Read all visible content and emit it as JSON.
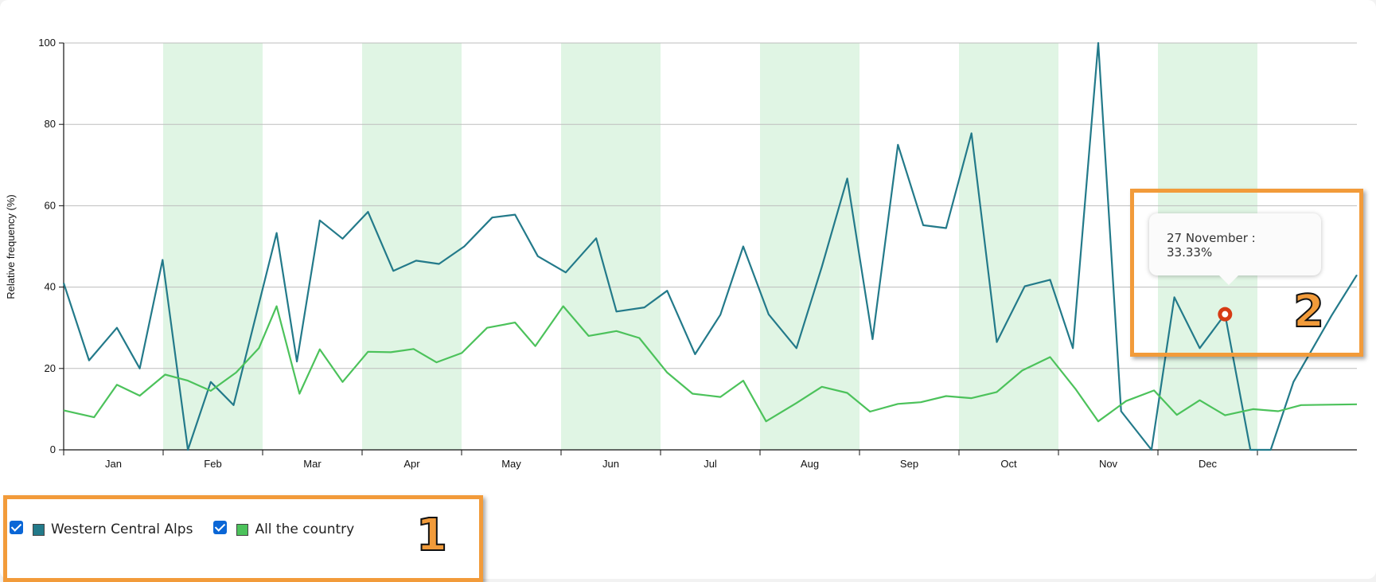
{
  "chart_data": {
    "type": "line",
    "ylabel": "Relative frequency (%)",
    "xlabel": "",
    "ylim": [
      0,
      100
    ],
    "yticks": [
      0,
      20,
      40,
      60,
      80,
      100
    ],
    "months": [
      "Jan",
      "Feb",
      "Mar",
      "Apr",
      "May",
      "Jun",
      "Jul",
      "Aug",
      "Sep",
      "Oct",
      "Nov",
      "Dec"
    ],
    "shaded_months": [
      "Feb",
      "Apr",
      "Jun",
      "Aug",
      "Oct",
      "Dec"
    ],
    "grid": true,
    "series": [
      {
        "name": "Western Central Alps",
        "color": "#237a8a",
        "points": [
          [
            0.0,
            41
          ],
          [
            0.5,
            22
          ],
          [
            1.05,
            30
          ],
          [
            1.5,
            20
          ],
          [
            1.95,
            46.7
          ],
          [
            2.45,
            0
          ],
          [
            2.9,
            16.7
          ],
          [
            3.35,
            11
          ],
          [
            4.2,
            53.3
          ],
          [
            4.6,
            21.7
          ],
          [
            5.05,
            56.4
          ],
          [
            5.5,
            51.9
          ],
          [
            6.0,
            58.5
          ],
          [
            6.5,
            44
          ],
          [
            6.95,
            46.5
          ],
          [
            7.4,
            45.7
          ],
          [
            7.9,
            50
          ],
          [
            8.45,
            57.1
          ],
          [
            8.9,
            57.8
          ],
          [
            9.35,
            47.6
          ],
          [
            9.9,
            43.6
          ],
          [
            10.5,
            52
          ],
          [
            10.9,
            34
          ],
          [
            11.45,
            35
          ],
          [
            11.9,
            39.1
          ],
          [
            12.45,
            23.5
          ],
          [
            12.95,
            33.2
          ],
          [
            13.4,
            50
          ],
          [
            13.9,
            33.3
          ],
          [
            14.45,
            25
          ],
          [
            14.95,
            45
          ],
          [
            15.45,
            66.7
          ],
          [
            15.95,
            27.2
          ],
          [
            16.45,
            75
          ],
          [
            16.95,
            55.2
          ],
          [
            17.4,
            54.5
          ],
          [
            17.9,
            77.8
          ],
          [
            18.4,
            26.5
          ],
          [
            18.95,
            40.2
          ],
          [
            19.45,
            41.8
          ],
          [
            19.9,
            25
          ],
          [
            20.4,
            100
          ],
          [
            20.85,
            9.5
          ],
          [
            21.45,
            0
          ],
          [
            21.9,
            37.5
          ],
          [
            22.4,
            25
          ],
          [
            22.9,
            33.33
          ],
          [
            23.4,
            0
          ],
          [
            23.8,
            0
          ],
          [
            24.25,
            16.7
          ],
          [
            25.0,
            33
          ],
          [
            25.5,
            43
          ]
        ]
      },
      {
        "name": "All the country",
        "color": "#4cc25b",
        "points": [
          [
            0.0,
            9.7
          ],
          [
            0.6,
            8
          ],
          [
            1.05,
            16
          ],
          [
            1.5,
            13.3
          ],
          [
            2.0,
            18.5
          ],
          [
            2.45,
            17
          ],
          [
            2.9,
            14.5
          ],
          [
            3.4,
            19
          ],
          [
            3.85,
            25
          ],
          [
            4.2,
            35.3
          ],
          [
            4.65,
            13.8
          ],
          [
            5.05,
            24.7
          ],
          [
            5.5,
            16.7
          ],
          [
            6.0,
            24.1
          ],
          [
            6.45,
            24
          ],
          [
            6.9,
            24.8
          ],
          [
            7.35,
            21.5
          ],
          [
            7.85,
            23.8
          ],
          [
            8.35,
            30
          ],
          [
            8.9,
            31.3
          ],
          [
            9.3,
            25.5
          ],
          [
            9.85,
            35.3
          ],
          [
            10.35,
            28
          ],
          [
            10.9,
            29.2
          ],
          [
            11.35,
            27.5
          ],
          [
            11.9,
            19
          ],
          [
            12.4,
            13.8
          ],
          [
            12.95,
            13
          ],
          [
            13.4,
            17
          ],
          [
            13.85,
            7
          ],
          [
            14.45,
            11.5
          ],
          [
            14.95,
            15.5
          ],
          [
            15.45,
            14
          ],
          [
            15.9,
            9.4
          ],
          [
            16.45,
            11.3
          ],
          [
            16.9,
            11.7
          ],
          [
            17.4,
            13.2
          ],
          [
            17.9,
            12.7
          ],
          [
            18.4,
            14.2
          ],
          [
            18.9,
            19.5
          ],
          [
            19.45,
            22.8
          ],
          [
            19.95,
            15
          ],
          [
            20.4,
            7
          ],
          [
            20.95,
            12
          ],
          [
            21.5,
            14.6
          ],
          [
            21.95,
            8.6
          ],
          [
            22.4,
            12.2
          ],
          [
            22.9,
            8.5
          ],
          [
            23.45,
            10
          ],
          [
            23.95,
            9.5
          ],
          [
            24.4,
            11
          ],
          [
            25.5,
            11.2
          ]
        ]
      }
    ],
    "tooltip": {
      "label": "27 November :",
      "value": "33.33%",
      "x": 22.9,
      "y": 33.33
    }
  },
  "legend": {
    "items": [
      {
        "label": "Western Central Alps",
        "color": "#237a8a",
        "checked": true
      },
      {
        "label": "All the country",
        "color": "#4cc25b",
        "checked": true
      }
    ]
  },
  "annotations": {
    "callout_1": "1",
    "callout_2": "2",
    "callout_color": "#f29b3a"
  },
  "colors": {
    "shade": "#e0f5e4",
    "grid": "#bdbdbd",
    "marker": "#d63a14"
  }
}
